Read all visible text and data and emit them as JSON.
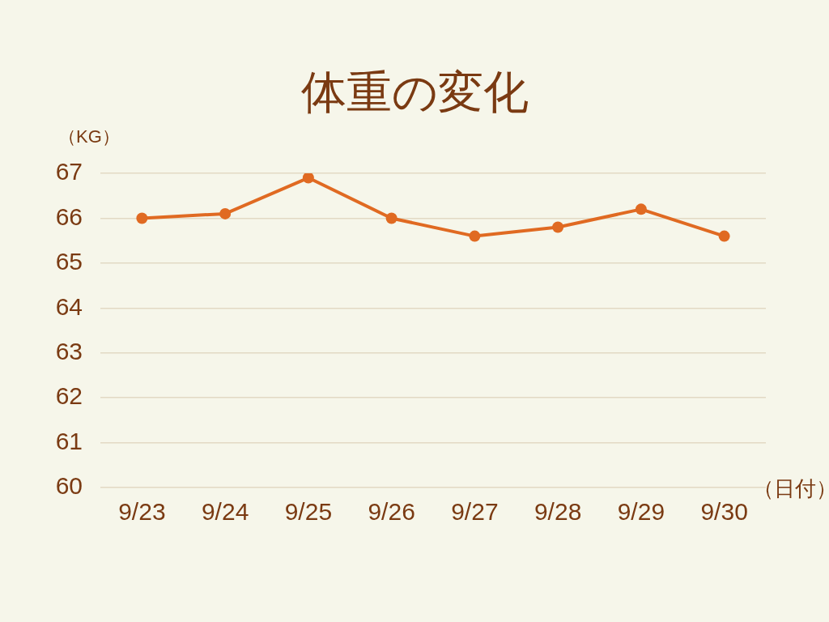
{
  "chart_data": {
    "type": "line",
    "title": "体重の変化",
    "ylabel": "（KG）",
    "xlabel": "（日付）",
    "categories": [
      "9/23",
      "9/24",
      "9/25",
      "9/26",
      "9/27",
      "9/28",
      "9/29",
      "9/30"
    ],
    "series": [
      {
        "color": "#e06a22",
        "values": [
          66.0,
          66.1,
          66.9,
          66.0,
          65.6,
          65.8,
          66.2,
          65.6
        ]
      }
    ],
    "ylim": [
      60,
      67
    ],
    "yticks": [
      60,
      61,
      62,
      63,
      64,
      65,
      66,
      67
    ],
    "grid": "y",
    "marker": "circle",
    "line_style": "solid"
  }
}
